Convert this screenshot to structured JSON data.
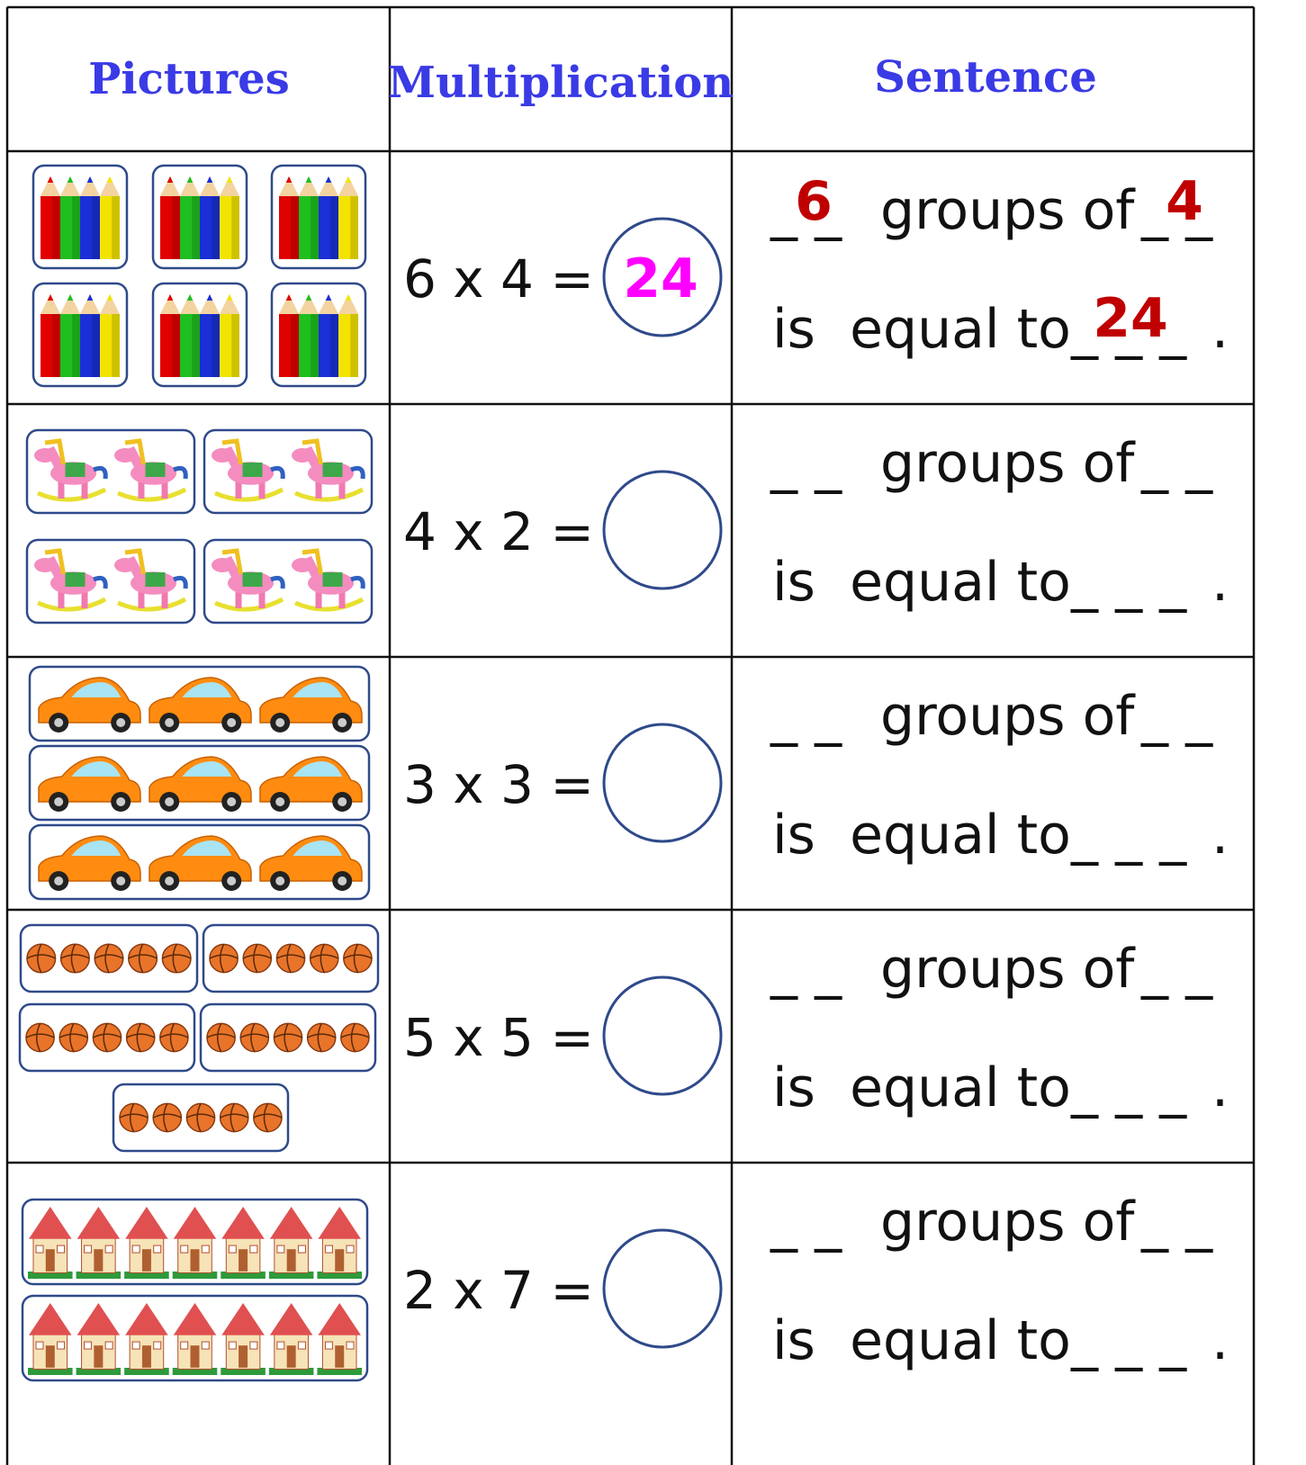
{
  "table": {
    "headers": [
      "Pictures",
      "Multiplication",
      "Sentence"
    ],
    "rows": [
      {
        "equation": "6 x 4 =",
        "answer": "24",
        "sentence": {
          "blank_groups": "_ _",
          "groups_of": "groups of",
          "blank_size": "_ _",
          "is_equal_to": "is  equal to",
          "blank_product": "_ _ _",
          "period": "."
        },
        "filled": {
          "groups": "6",
          "size": "4",
          "product": "24"
        }
      },
      {
        "equation": "4 x 2 =",
        "sentence": {
          "blank_groups": "_ _",
          "groups_of": "groups of",
          "blank_size": "_ _",
          "is_equal_to": "is  equal to",
          "blank_product": "_ _ _",
          "period": "."
        }
      },
      {
        "equation": "3 x 3 =",
        "sentence": {
          "blank_groups": "_ _",
          "groups_of": "groups of",
          "blank_size": "_ _",
          "is_equal_to": "is  equal to",
          "blank_product": "_ _ _",
          "period": "."
        }
      },
      {
        "equation": "5 x 5 =",
        "sentence": {
          "blank_groups": "_ _",
          "groups_of": "groups of",
          "blank_size": "_ _",
          "is_equal_to": "is  equal to",
          "blank_product": "_ _ _",
          "period": "."
        }
      },
      {
        "equation": "2 x 7 =",
        "sentence": {
          "blank_groups": "_ _",
          "groups_of": "groups of",
          "blank_size": "_ _",
          "is_equal_to": "is  equal to",
          "blank_product": "_ _ _",
          "period": "."
        }
      }
    ]
  }
}
